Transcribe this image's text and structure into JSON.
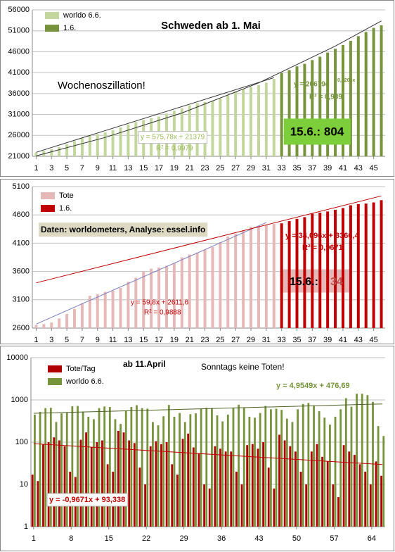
{
  "chart_data": [
    {
      "type": "bar",
      "title": "Schweden ab 1. Mai",
      "x": [
        1,
        2,
        3,
        4,
        5,
        6,
        7,
        8,
        9,
        10,
        11,
        12,
        13,
        14,
        15,
        16,
        17,
        18,
        19,
        20,
        21,
        22,
        23,
        24,
        25,
        26,
        27,
        28,
        29,
        30,
        31,
        32,
        33,
        34,
        35,
        36,
        37,
        38,
        39,
        40,
        41,
        42,
        43,
        44,
        45,
        46
      ],
      "xlim": [
        0.5,
        46.5
      ],
      "xticks": [
        1,
        3,
        5,
        7,
        9,
        11,
        13,
        15,
        17,
        19,
        21,
        23,
        25,
        27,
        29,
        31,
        33,
        35,
        37,
        39,
        41,
        43,
        45
      ],
      "ylim": [
        21000,
        56000
      ],
      "yticks": [
        21000,
        26000,
        31000,
        36000,
        41000,
        46000,
        51000,
        56000
      ],
      "grid": true,
      "series": [
        {
          "name": "worldo 6.6.",
          "color": "#c3d69b",
          "values": [
            21900,
            22300,
            22700,
            23200,
            23900,
            24600,
            25300,
            25900,
            26300,
            26700,
            27300,
            27900,
            28600,
            29200,
            29700,
            30100,
            30500,
            31200,
            31900,
            32500,
            33200,
            33700,
            34000,
            34200,
            34800,
            35600,
            36500,
            37100,
            37600,
            38000,
            38600,
            39500,
            null,
            null,
            null,
            null,
            null,
            null,
            null,
            null,
            null,
            null,
            null,
            null,
            null,
            null
          ]
        },
        {
          "name": "1.6.",
          "color": "#77933c",
          "values": [
            null,
            null,
            null,
            null,
            null,
            null,
            null,
            null,
            null,
            null,
            null,
            null,
            null,
            null,
            null,
            null,
            null,
            null,
            null,
            null,
            null,
            null,
            null,
            null,
            null,
            null,
            null,
            null,
            null,
            null,
            null,
            null,
            40900,
            41600,
            42500,
            43100,
            44000,
            44800,
            45800,
            46700,
            47600,
            48600,
            49700,
            50700,
            51700,
            52300
          ]
        }
      ],
      "trendlines": [
        {
          "color": "#333333",
          "x": [
            1,
            32
          ],
          "values": [
            21955,
            39804
          ]
        },
        {
          "color": "#333333",
          "x": [
            1,
            10,
            20,
            30,
            40,
            46
          ],
          "values": [
            21109,
            25517,
            31356,
            38530,
            47345,
            53340
          ]
        }
      ],
      "annotations": [
        "Wochenoszillation!",
        "y = 575,78x + 21379",
        "R² = 0,9979",
        "y = 20679e",
        "0,0206x",
        "R² = 0,989",
        "15.6.: 804"
      ]
    },
    {
      "type": "bar",
      "x": [
        1,
        2,
        3,
        4,
        5,
        6,
        7,
        8,
        9,
        10,
        11,
        12,
        13,
        14,
        15,
        16,
        17,
        18,
        19,
        20,
        21,
        22,
        23,
        24,
        25,
        26,
        27,
        28,
        29,
        30,
        31,
        32,
        33,
        34,
        35,
        36,
        37,
        38,
        39,
        40,
        41,
        42,
        43,
        44,
        45,
        46
      ],
      "xlim": [
        0.5,
        46.5
      ],
      "xticks": [
        1,
        3,
        5,
        7,
        9,
        11,
        13,
        15,
        17,
        19,
        21,
        23,
        25,
        27,
        29,
        31,
        33,
        35,
        37,
        39,
        41,
        43,
        45
      ],
      "ylim": [
        2600,
        5100
      ],
      "yticks": [
        2600,
        3100,
        3600,
        4100,
        4600,
        5100
      ],
      "grid": true,
      "series": [
        {
          "name": "Tote",
          "color": "#e6b9b8",
          "values": [
            2650,
            2670,
            2700,
            2770,
            2850,
            2940,
            3040,
            3170,
            3200,
            3240,
            3260,
            3310,
            3420,
            3490,
            3600,
            3650,
            3670,
            3700,
            3750,
            3850,
            3900,
            3930,
            3990,
            4030,
            4120,
            4220,
            4270,
            4330,
            4390,
            4400,
            4420,
            4440,
            null,
            null,
            null,
            null,
            null,
            null,
            null,
            null,
            null,
            null,
            null,
            null,
            null,
            null
          ]
        },
        {
          "name": "1.6.",
          "color": "#c00000",
          "values": [
            null,
            null,
            null,
            null,
            null,
            null,
            null,
            null,
            null,
            null,
            null,
            null,
            null,
            null,
            null,
            null,
            null,
            null,
            null,
            null,
            null,
            null,
            null,
            null,
            null,
            null,
            null,
            null,
            null,
            null,
            null,
            null,
            4450,
            4490,
            4530,
            4560,
            4620,
            4640,
            4660,
            4690,
            4720,
            4770,
            4790,
            4800,
            4820,
            4860
          ]
        }
      ],
      "trendlines": [
        {
          "color": "#7f7fbf",
          "x": [
            1,
            31
          ],
          "values": [
            2671,
            4465
          ]
        },
        {
          "color": "#c00000",
          "x": [
            1,
            46
          ],
          "values": [
            3400,
            4935
          ]
        }
      ],
      "annotations": [
        "Daten: worldometers, Analyse: essel.info",
        "y = 34,096x + 3366,4",
        "R² = 0,9671",
        "y = 59,8x + 2611,6",
        "R² = 0,9888",
        "15.6.:",
        "34"
      ]
    },
    {
      "type": "bar",
      "log_scale": true,
      "x": [
        1,
        2,
        3,
        4,
        5,
        6,
        7,
        8,
        9,
        10,
        11,
        12,
        13,
        14,
        15,
        16,
        17,
        18,
        19,
        20,
        21,
        22,
        23,
        24,
        25,
        26,
        27,
        28,
        29,
        30,
        31,
        32,
        33,
        34,
        35,
        36,
        37,
        38,
        39,
        40,
        41,
        42,
        43,
        44,
        45,
        46,
        47,
        48,
        49,
        50,
        51,
        52,
        53,
        54,
        55,
        56,
        57,
        58,
        59,
        60,
        61,
        62,
        63,
        64,
        65,
        66
      ],
      "xlim": [
        0.5,
        66.5
      ],
      "xticks": [
        1,
        8,
        15,
        22,
        29,
        36,
        43,
        50,
        57,
        64
      ],
      "ylim": [
        1,
        10000
      ],
      "yticks": [
        1,
        10,
        100,
        1000,
        10000
      ],
      "grid": true,
      "series": [
        {
          "name": "Tote/Tag",
          "color": "#b00000",
          "values": [
            17,
            12,
            88,
            100,
            130,
            110,
            80,
            20,
            15,
            114,
            170,
            77,
            100,
            110,
            30,
            20,
            185,
            170,
            110,
            95,
            25,
            10,
            80,
            105,
            90,
            100,
            30,
            17,
            120,
            160,
            75,
            55,
            10,
            8,
            80,
            70,
            60,
            60,
            20,
            10,
            85,
            90,
            70,
            100,
            25,
            8,
            150,
            110,
            80,
            60,
            20,
            10,
            60,
            90,
            45,
            35,
            10,
            5,
            85,
            60,
            50,
            30,
            20,
            10,
            35,
            16
          ]
        },
        {
          "name": "worldo 6.6.",
          "color": "#77933c",
          "values": [
            450,
            520,
            640,
            650,
            300,
            480,
            500,
            710,
            720,
            530,
            400,
            350,
            640,
            700,
            680,
            350,
            270,
            560,
            680,
            750,
            640,
            620,
            300,
            250,
            410,
            760,
            400,
            490,
            300,
            460,
            480,
            620,
            650,
            640,
            430,
            310,
            450,
            640,
            770,
            660,
            400,
            380,
            490,
            720,
            600,
            620,
            580,
            360,
            300,
            600,
            800,
            850,
            740,
            540,
            380,
            260,
            400,
            600,
            1100,
            690,
            1400,
            1400,
            1300,
            900,
            240,
            140
          ]
        }
      ],
      "trendlines": [
        {
          "color": "#4f6228",
          "x": [
            1,
            66
          ],
          "values": [
            481.6,
            803.7
          ]
        },
        {
          "color": "#c00000",
          "x": [
            1,
            66
          ],
          "values": [
            92.4,
            29.5
          ]
        }
      ],
      "annotations": [
        "ab 11.April",
        "Sonntags keine Toten!",
        "y = 4,9549x + 476,69",
        "y = -0,9671x + 93,338"
      ]
    }
  ]
}
